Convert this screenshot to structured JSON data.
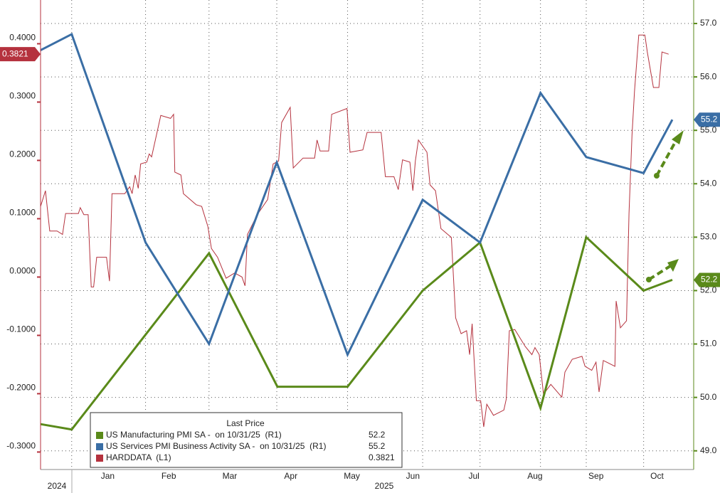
{
  "chart_data": {
    "type": "line",
    "xlim": [
      -0.6,
      10.1
    ],
    "xticks": [
      {
        "value": 0.5,
        "label": "Jan"
      },
      {
        "value": 1.5,
        "label": "Feb"
      },
      {
        "value": 2.5,
        "label": "Mar"
      },
      {
        "value": 3.5,
        "label": "Apr"
      },
      {
        "value": 4.5,
        "label": "May"
      },
      {
        "value": 5.5,
        "label": "Jun"
      },
      {
        "value": 6.5,
        "label": "Jul"
      },
      {
        "value": 7.5,
        "label": "Aug"
      },
      {
        "value": 8.5,
        "label": "Sep"
      },
      {
        "value": 9.5,
        "label": "Oct"
      }
    ],
    "year_labels": [
      "2024",
      "2025"
    ],
    "ylim": [
      -0.33,
      0.475
    ],
    "yticks": [
      {
        "value": -0.3,
        "label": "-0.3000"
      },
      {
        "value": -0.2,
        "label": "-0.2000"
      },
      {
        "value": -0.1,
        "label": "-0.1000"
      },
      {
        "value": 0,
        "label": "0.0000"
      },
      {
        "value": 0.1,
        "label": "0.1000"
      },
      {
        "value": 0.2,
        "label": "0.2000"
      },
      {
        "value": 0.3,
        "label": "0.3000"
      },
      {
        "value": 0.4,
        "label": "0.4000"
      }
    ],
    "y2lim": [
      48.65,
      57.44
    ],
    "y2ticks": [
      {
        "value": 49,
        "label": "49.0"
      },
      {
        "value": 50,
        "label": "50.0"
      },
      {
        "value": 51,
        "label": "51.0"
      },
      {
        "value": 52,
        "label": "52.0"
      },
      {
        "value": 53,
        "label": "53.0"
      },
      {
        "value": 54,
        "label": "54.0"
      },
      {
        "value": 55,
        "label": "55.0"
      },
      {
        "value": 56,
        "label": "56.0"
      },
      {
        "value": 57,
        "label": "57.0"
      }
    ],
    "grid": true,
    "legend_title": "Last Price",
    "series": [
      {
        "name": "US Manufacturing PMI SA -  on 10/31/25  (R1)",
        "color": "#5a8a1a",
        "axis": "y2",
        "x": [
          -0.6,
          -0.09,
          2.16,
          3.28,
          4.43,
          5.66,
          6.6,
          7.59,
          8.34,
          9.28,
          9.75
        ],
        "values": [
          49.5,
          49.4,
          52.7,
          50.2,
          50.2,
          52.0,
          52.9,
          49.8,
          53.0,
          52.0,
          52.2
        ]
      },
      {
        "name": "US Services PMI Business Activity SA -  on 10/31/25  (R1)",
        "color": "#3a6ea5",
        "axis": "y2",
        "x": [
          -0.6,
          -0.09,
          1.12,
          2.16,
          3.27,
          4.43,
          5.66,
          6.6,
          7.59,
          8.34,
          9.28,
          9.75
        ],
        "values": [
          56.5,
          56.8,
          52.9,
          51.0,
          54.4,
          50.8,
          53.7,
          52.9,
          55.7,
          54.5,
          54.2,
          55.2
        ]
      },
      {
        "name": "HARDDATA  (L1)",
        "color": "#b5323e",
        "axis": "y",
        "x": [
          -0.6,
          -0.52,
          -0.45,
          -0.33,
          -0.24,
          -0.19,
          0.02,
          0.05,
          0.11,
          0.18,
          0.23,
          0.27,
          0.32,
          0.48,
          0.53,
          0.57,
          0.78,
          0.86,
          0.9,
          0.95,
          1.0,
          1.04,
          1.14,
          1.18,
          1.22,
          1.37,
          1.53,
          1.58,
          1.6,
          1.7,
          1.74,
          1.95,
          2.04,
          2.14,
          2.2,
          2.3,
          2.44,
          2.58,
          2.7,
          2.75,
          2.79,
          2.95,
          3.12,
          3.21,
          3.3,
          3.35,
          3.49,
          3.54,
          3.7,
          3.89,
          3.93,
          3.98,
          4.12,
          4.17,
          4.42,
          4.47,
          4.68,
          4.75,
          4.98,
          5.05,
          5.19,
          5.26,
          5.33,
          5.45,
          5.5,
          5.54,
          5.59,
          5.73,
          5.78,
          5.87,
          5.96,
          6.13,
          6.2,
          6.29,
          6.38,
          6.43,
          6.47,
          6.54,
          6.61,
          6.66,
          6.71,
          6.82,
          6.99,
          7.03,
          7.08,
          7.17,
          7.34,
          7.45,
          7.5,
          7.57,
          7.64,
          7.76,
          7.94,
          7.99,
          8.11,
          8.27,
          8.32,
          8.43,
          8.5,
          8.55,
          8.62,
          8.81,
          8.83,
          8.9,
          9.0,
          9.04,
          9.09,
          9.13,
          9.2,
          9.3,
          9.34,
          9.44,
          9.53,
          9.58,
          9.69
        ],
        "values": [
          0.121,
          0.148,
          0.079,
          0.079,
          0.073,
          0.109,
          0.109,
          0.119,
          0.107,
          0.107,
          -0.017,
          -0.017,
          0.034,
          0.034,
          -0.007,
          0.143,
          0.143,
          0.155,
          0.143,
          0.175,
          0.152,
          0.194,
          0.197,
          0.211,
          0.206,
          0.277,
          0.272,
          0.279,
          0.18,
          0.175,
          0.143,
          0.124,
          0.121,
          0.087,
          0.049,
          0.034,
          -0.002,
          0.007,
          0.0,
          -0.015,
          0.073,
          0.107,
          0.133,
          0.194,
          0.199,
          0.265,
          0.291,
          0.187,
          0.204,
          0.204,
          0.235,
          0.216,
          0.216,
          0.279,
          0.289,
          0.214,
          0.218,
          0.248,
          0.248,
          0.172,
          0.172,
          0.15,
          0.201,
          0.197,
          0.148,
          0.199,
          0.235,
          0.214,
          0.158,
          0.148,
          0.083,
          0.068,
          -0.07,
          -0.097,
          -0.092,
          -0.133,
          -0.08,
          -0.212,
          -0.212,
          -0.257,
          -0.218,
          -0.237,
          -0.228,
          -0.209,
          -0.092,
          -0.09,
          -0.119,
          -0.133,
          -0.121,
          -0.133,
          -0.201,
          -0.184,
          -0.206,
          -0.163,
          -0.141,
          -0.136,
          -0.153,
          -0.16,
          -0.146,
          -0.197,
          -0.143,
          -0.153,
          -0.041,
          -0.087,
          -0.075,
          0.109,
          0.243,
          0.318,
          0.415,
          0.415,
          0.386,
          0.325,
          0.325,
          0.386,
          0.3821
        ]
      }
    ]
  }
}
